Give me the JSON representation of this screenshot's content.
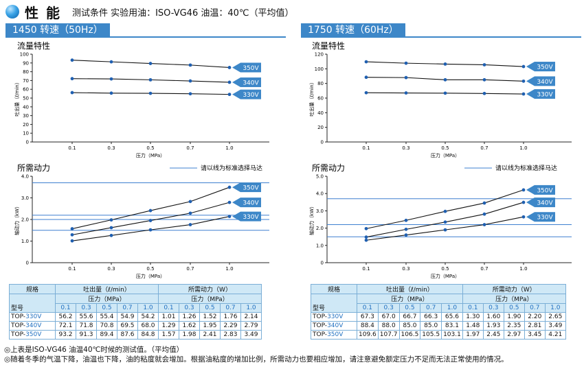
{
  "header": {
    "title": "性 能",
    "conditions": "测试条件 实验用油：ISO-VG46 油温：40℃（平均值）"
  },
  "panels": [
    {
      "tab": "1450 转速（50Hz）"
    },
    {
      "tab": "1750 转速（60Hz）"
    }
  ],
  "chart_labels": {
    "flow_title": "流量特性",
    "power_title": "所需动力",
    "flow_ylabel": "吐出量（ℓ/min）",
    "power_ylabel": "轴动力（kW）",
    "xlabel": "压力（MPa）",
    "legend_note": "请以线为标准选择马达"
  },
  "chart_data": [
    {
      "type": "line",
      "title": "流量特性",
      "panel": "1450 转速（50Hz）",
      "xlabel": "压力（MPa）",
      "ylabel": "吐出量（ℓ/min）",
      "x": [
        0.1,
        0.3,
        0.5,
        0.7,
        1.0
      ],
      "xticks": [
        "0.1",
        "0.3",
        "0.5",
        "0.7",
        "1.0"
      ],
      "ylim": [
        0,
        100
      ],
      "yticks": [
        0,
        10,
        20,
        30,
        40,
        50,
        60,
        70,
        80,
        90,
        100
      ],
      "series": [
        {
          "name": "350V",
          "values": [
            93.2,
            91.3,
            89.4,
            87.6,
            84.8
          ]
        },
        {
          "name": "340V",
          "values": [
            72.1,
            71.8,
            70.8,
            69.5,
            68.0
          ]
        },
        {
          "name": "330V",
          "values": [
            56.2,
            55.6,
            55.4,
            54.9,
            54.2
          ]
        }
      ]
    },
    {
      "type": "line",
      "title": "所需动力",
      "panel": "1450 转速（50Hz）",
      "xlabel": "压力（MPa）",
      "ylabel": "轴动力（kW）",
      "x": [
        0.1,
        0.3,
        0.5,
        0.7,
        1.0
      ],
      "xticks": [
        "0.1",
        "0.3",
        "0.5",
        "0.7",
        "1.0"
      ],
      "ylim": [
        0,
        4
      ],
      "yticks": [
        "0",
        "1.0",
        "2.0",
        "3.0",
        "4.0"
      ],
      "ytick_values": [
        0,
        1,
        2,
        3,
        4
      ],
      "reference_lines": [
        3.7,
        2.2,
        2.0,
        1.5
      ],
      "series": [
        {
          "name": "350V",
          "values": [
            1.57,
            1.98,
            2.41,
            2.83,
            3.49
          ]
        },
        {
          "name": "340V",
          "values": [
            1.29,
            1.62,
            1.95,
            2.29,
            2.79
          ]
        },
        {
          "name": "330V",
          "values": [
            1.01,
            1.26,
            1.52,
            1.76,
            2.14
          ]
        }
      ]
    },
    {
      "type": "line",
      "title": "流量特性",
      "panel": "1750 转速（60Hz）",
      "xlabel": "压力（MPa）",
      "ylabel": "吐出量（ℓ/min）",
      "x": [
        0.1,
        0.3,
        0.5,
        0.7,
        1.0
      ],
      "xticks": [
        "0.1",
        "0.3",
        "0.5",
        "0.7",
        "1.0"
      ],
      "ylim": [
        0,
        120
      ],
      "yticks": [
        0,
        20,
        40,
        60,
        80,
        100,
        120
      ],
      "series": [
        {
          "name": "350V",
          "values": [
            109.6,
            107.7,
            106.5,
            105.5,
            103.1
          ]
        },
        {
          "name": "340V",
          "values": [
            88.4,
            88.0,
            85.0,
            85.0,
            83.1
          ]
        },
        {
          "name": "330V",
          "values": [
            67.3,
            67.0,
            66.7,
            66.3,
            65.6
          ]
        }
      ]
    },
    {
      "type": "line",
      "title": "所需动力",
      "panel": "1750 转速（60Hz）",
      "xlabel": "压力（MPa）",
      "ylabel": "轴动力（kW）",
      "x": [
        0.1,
        0.3,
        0.5,
        0.7,
        1.0
      ],
      "xticks": [
        "0.1",
        "0.3",
        "0.5",
        "0.7",
        "1.0"
      ],
      "ylim": [
        0,
        5
      ],
      "yticks": [
        "0",
        "1.0",
        "2.0",
        "3.0",
        "4.0",
        "5.0"
      ],
      "ytick_values": [
        0,
        1,
        2,
        3,
        4,
        5
      ],
      "reference_lines": [
        3.7,
        2.2,
        1.5
      ],
      "series": [
        {
          "name": "350V",
          "values": [
            1.97,
            2.45,
            2.97,
            3.45,
            4.21
          ]
        },
        {
          "name": "340V",
          "values": [
            1.48,
            1.93,
            2.35,
            2.81,
            3.49
          ]
        },
        {
          "name": "330V",
          "values": [
            1.3,
            1.6,
            1.9,
            2.2,
            2.65
          ]
        }
      ]
    }
  ],
  "tables": [
    {
      "spec": "规格",
      "flow_head": "吐出量（ℓ/min）",
      "power_head": "所需动力（W）",
      "press_head": "压力（MPa）",
      "model_head": "型号",
      "pressures": [
        "0.1",
        "0.3",
        "0.5",
        "0.7",
        "1.0"
      ],
      "rows": [
        {
          "model": "TOP-",
          "volt": "330V",
          "flow": [
            "56.2",
            "55.6",
            "55.4",
            "54.9",
            "54.2"
          ],
          "power": [
            "1.01",
            "1.26",
            "1.52",
            "1.76",
            "2.14"
          ]
        },
        {
          "model": "TOP-",
          "volt": "340V",
          "flow": [
            "72.1",
            "71.8",
            "70.8",
            "69.5",
            "68.0"
          ],
          "power": [
            "1.29",
            "1.62",
            "1.95",
            "2.29",
            "2.79"
          ]
        },
        {
          "model": "TOP-",
          "volt": "350V",
          "flow": [
            "93.2",
            "91.3",
            "89.4",
            "87.6",
            "84.8"
          ],
          "power": [
            "1.57",
            "1.98",
            "2.41",
            "2.83",
            "3.49"
          ]
        }
      ]
    },
    {
      "spec": "规格",
      "flow_head": "吐出量（ℓ/min）",
      "power_head": "所需动力（W）",
      "press_head": "压力（MPa）",
      "model_head": "型号",
      "pressures": [
        "0.1",
        "0.3",
        "0.5",
        "0.7",
        "1.0"
      ],
      "rows": [
        {
          "model": "TOP-",
          "volt": "330V",
          "flow": [
            "67.3",
            "67.0",
            "66.7",
            "66.3",
            "65.6"
          ],
          "power": [
            "1.30",
            "1.60",
            "1.90",
            "2.20",
            "2.65"
          ]
        },
        {
          "model": "TOP-",
          "volt": "340V",
          "flow": [
            "88.4",
            "88.0",
            "85.0",
            "85.0",
            "83.1"
          ],
          "power": [
            "1.48",
            "1.93",
            "2.35",
            "2.81",
            "3.49"
          ]
        },
        {
          "model": "TOP-",
          "volt": "350V",
          "flow": [
            "109.6",
            "107.7",
            "106.5",
            "105.5",
            "103.1"
          ],
          "power": [
            "1.97",
            "2.45",
            "2.97",
            "3.45",
            "4.21"
          ]
        }
      ]
    }
  ],
  "notes": [
    "◎上表是ISO-VG46 油温40℃时候的测试值。（平均值）",
    "◎随着冬季的气温下降，油温也下降，油的粘度就会增加。根据油粘度的增加比例，所需动力也要相应增加，请注意避免额定压力不足而无法正常使用的情况。"
  ],
  "colors": {
    "accent": "#3d87c8",
    "marker": "#1f5fb0",
    "ref_line": "#3d7fd0",
    "table_bg": "#cfe8f6"
  }
}
